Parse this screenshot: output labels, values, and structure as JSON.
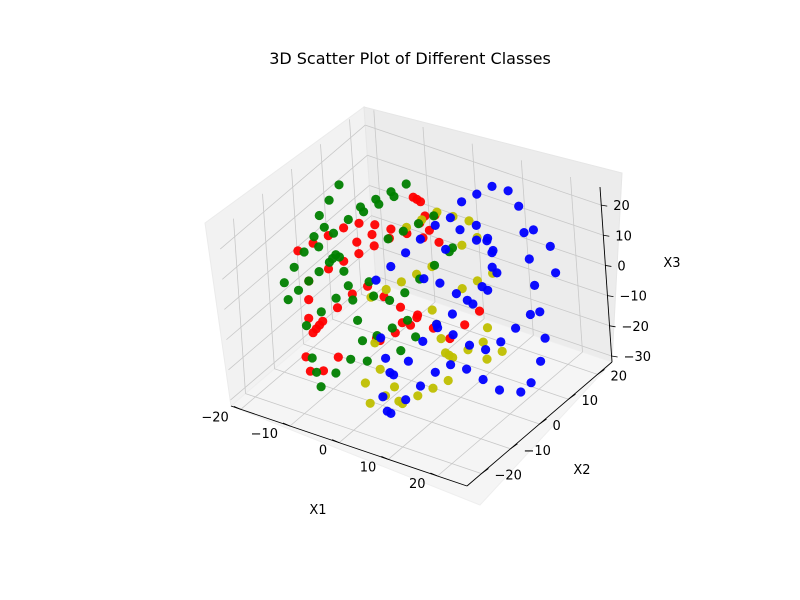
{
  "chart_data": {
    "type": "scatter",
    "projection": "3d",
    "title": "3D Scatter Plot of Different Classes",
    "xlabel": "X1",
    "ylabel": "X2",
    "zlabel": "X3",
    "xlim": [
      -22,
      26
    ],
    "ylim": [
      -25,
      25
    ],
    "zlim": [
      -32,
      26
    ],
    "xticks": [
      -20,
      -10,
      0,
      10,
      20
    ],
    "yticks": [
      -20,
      -10,
      0,
      10,
      20
    ],
    "zticks": [
      -30,
      -20,
      -10,
      0,
      10,
      20
    ],
    "grid": true,
    "legend": "none",
    "series": [
      {
        "color": "#ff0000",
        "points": [
          [
            -18,
            -6,
            6
          ],
          [
            -16,
            -4,
            8
          ],
          [
            -14,
            -2,
            10
          ],
          [
            -12,
            0,
            12
          ],
          [
            -10,
            2,
            13
          ],
          [
            -8,
            4,
            12
          ],
          [
            -6,
            6,
            10
          ],
          [
            -4,
            8,
            8
          ],
          [
            -2,
            10,
            6
          ],
          [
            0,
            12,
            4
          ],
          [
            -17,
            2,
            -6
          ],
          [
            -15,
            4,
            -4
          ],
          [
            -13,
            6,
            -2
          ],
          [
            -11,
            8,
            0
          ],
          [
            -9,
            10,
            2
          ],
          [
            -7,
            12,
            4
          ],
          [
            -5,
            14,
            6
          ],
          [
            -3,
            16,
            8
          ],
          [
            -20,
            0,
            -10
          ],
          [
            -19,
            -2,
            -14
          ],
          [
            -18,
            -4,
            -18
          ],
          [
            -16,
            -6,
            -20
          ],
          [
            -14,
            -8,
            -16
          ],
          [
            -12,
            -10,
            -12
          ],
          [
            -10,
            -12,
            -8
          ],
          [
            -8,
            -10,
            -4
          ],
          [
            -6,
            -8,
            0
          ],
          [
            -4,
            -6,
            2
          ],
          [
            -2,
            -4,
            -2
          ],
          [
            0,
            -2,
            -6
          ],
          [
            2,
            0,
            -10
          ],
          [
            4,
            2,
            -14
          ],
          [
            6,
            4,
            -18
          ],
          [
            8,
            6,
            -14
          ],
          [
            10,
            8,
            -10
          ],
          [
            -6,
            14,
            14
          ],
          [
            -4,
            12,
            16
          ],
          [
            -2,
            10,
            18
          ],
          [
            0,
            8,
            16
          ],
          [
            2,
            6,
            14
          ],
          [
            -14,
            -12,
            -22
          ],
          [
            -12,
            -14,
            -24
          ],
          [
            -8,
            -16,
            -20
          ],
          [
            -6,
            -14,
            -16
          ],
          [
            4,
            -8,
            -4
          ],
          [
            6,
            -6,
            -2
          ],
          [
            -10,
            6,
            6
          ],
          [
            -12,
            4,
            4
          ],
          [
            -8,
            2,
            -24
          ],
          [
            -6,
            0,
            -22
          ],
          [
            -4,
            2,
            -20
          ],
          [
            -2,
            4,
            -18
          ]
        ]
      },
      {
        "color": "#bfbf00",
        "points": [
          [
            -4,
            8,
            10
          ],
          [
            -2,
            10,
            12
          ],
          [
            0,
            12,
            14
          ],
          [
            2,
            14,
            12
          ],
          [
            4,
            16,
            10
          ],
          [
            -6,
            -2,
            -6
          ],
          [
            -4,
            0,
            -4
          ],
          [
            -2,
            2,
            -2
          ],
          [
            0,
            4,
            0
          ],
          [
            2,
            6,
            2
          ],
          [
            4,
            2,
            -8
          ],
          [
            6,
            0,
            -10
          ],
          [
            8,
            -2,
            -12
          ],
          [
            10,
            -4,
            -14
          ],
          [
            12,
            -6,
            -12
          ],
          [
            14,
            -8,
            -10
          ],
          [
            16,
            -6,
            -8
          ],
          [
            18,
            -4,
            -6
          ],
          [
            4,
            -12,
            -22
          ],
          [
            6,
            -14,
            -24
          ],
          [
            8,
            -16,
            -22
          ],
          [
            10,
            -14,
            -20
          ],
          [
            12,
            -12,
            -18
          ],
          [
            14,
            -10,
            -16
          ],
          [
            0,
            -10,
            -20
          ],
          [
            2,
            -12,
            -26
          ],
          [
            -2,
            -8,
            -14
          ],
          [
            8,
            6,
            -2
          ],
          [
            10,
            8,
            0
          ],
          [
            12,
            10,
            2
          ],
          [
            6,
            10,
            8
          ],
          [
            8,
            12,
            10
          ],
          [
            -2,
            -12,
            -24
          ],
          [
            0,
            -14,
            -28
          ],
          [
            16,
            0,
            -16
          ],
          [
            18,
            2,
            -14
          ],
          [
            14,
            4,
            -10
          ]
        ]
      },
      {
        "color": "#008000",
        "points": [
          [
            -20,
            -8,
            -4
          ],
          [
            -19,
            -6,
            0
          ],
          [
            -18,
            -4,
            4
          ],
          [
            -17,
            -2,
            8
          ],
          [
            -16,
            0,
            10
          ],
          [
            -20,
            4,
            -2
          ],
          [
            -18,
            6,
            2
          ],
          [
            -16,
            8,
            6
          ],
          [
            -14,
            10,
            8
          ],
          [
            -12,
            12,
            10
          ],
          [
            -10,
            14,
            12
          ],
          [
            -22,
            -4,
            -14
          ],
          [
            -21,
            -2,
            -12
          ],
          [
            -20,
            0,
            -10
          ],
          [
            -19,
            2,
            -8
          ],
          [
            -18,
            4,
            -6
          ],
          [
            -16,
            2,
            -2
          ],
          [
            -14,
            0,
            2
          ],
          [
            -12,
            -2,
            4
          ],
          [
            -10,
            -4,
            2
          ],
          [
            -8,
            -6,
            0
          ],
          [
            -6,
            -8,
            -2
          ],
          [
            -4,
            -10,
            -6
          ],
          [
            -2,
            -12,
            -10
          ],
          [
            0,
            -14,
            -14
          ],
          [
            -14,
            -10,
            -24
          ],
          [
            -12,
            -12,
            -26
          ],
          [
            -10,
            -14,
            -28
          ],
          [
            -8,
            -12,
            -24
          ],
          [
            -6,
            -10,
            -20
          ],
          [
            -8,
            8,
            4
          ],
          [
            -6,
            10,
            6
          ],
          [
            -4,
            12,
            8
          ],
          [
            -2,
            14,
            10
          ],
          [
            -10,
            4,
            -8
          ],
          [
            -8,
            2,
            -10
          ],
          [
            -6,
            4,
            -12
          ],
          [
            -4,
            6,
            -10
          ],
          [
            -2,
            8,
            -6
          ],
          [
            0,
            10,
            -2
          ],
          [
            2,
            12,
            2
          ],
          [
            4,
            10,
            6
          ],
          [
            -22,
            8,
            4
          ],
          [
            -21,
            10,
            8
          ],
          [
            -20,
            12,
            12
          ],
          [
            -4,
            -4,
            -16
          ],
          [
            -2,
            -2,
            -14
          ],
          [
            0,
            0,
            -12
          ],
          [
            -12,
            6,
            14
          ],
          [
            -10,
            8,
            16
          ],
          [
            -8,
            10,
            18
          ],
          [
            -6,
            12,
            20
          ],
          [
            -16,
            -8,
            -16
          ],
          [
            -14,
            -6,
            -12
          ],
          [
            -12,
            -4,
            -8
          ],
          [
            2,
            -6,
            -16
          ],
          [
            4,
            -4,
            -12
          ]
        ]
      },
      {
        "color": "#0000ff",
        "points": [
          [
            4,
            14,
            18
          ],
          [
            6,
            16,
            20
          ],
          [
            8,
            18,
            22
          ],
          [
            10,
            20,
            20
          ],
          [
            12,
            20,
            16
          ],
          [
            14,
            18,
            10
          ],
          [
            16,
            16,
            4
          ],
          [
            18,
            14,
            -2
          ],
          [
            20,
            12,
            -8
          ],
          [
            22,
            10,
            -14
          ],
          [
            22,
            8,
            -20
          ],
          [
            21,
            6,
            -26
          ],
          [
            20,
            4,
            -28
          ],
          [
            -2,
            4,
            6
          ],
          [
            0,
            6,
            10
          ],
          [
            2,
            8,
            14
          ],
          [
            4,
            10,
            16
          ],
          [
            8,
            12,
            14
          ],
          [
            10,
            12,
            10
          ],
          [
            12,
            10,
            4
          ],
          [
            12,
            8,
            -2
          ],
          [
            10,
            6,
            -6
          ],
          [
            8,
            4,
            -2
          ],
          [
            6,
            2,
            2
          ],
          [
            4,
            0,
            4
          ],
          [
            -2,
            -6,
            -14
          ],
          [
            0,
            -8,
            -18
          ],
          [
            2,
            -10,
            -20
          ],
          [
            4,
            -12,
            -18
          ],
          [
            6,
            -10,
            -14
          ],
          [
            8,
            -8,
            -8
          ],
          [
            10,
            -6,
            -4
          ],
          [
            12,
            -4,
            0
          ],
          [
            14,
            -2,
            4
          ],
          [
            16,
            0,
            8
          ],
          [
            18,
            2,
            12
          ],
          [
            16,
            4,
            16
          ],
          [
            14,
            6,
            18
          ],
          [
            4,
            -16,
            -22
          ],
          [
            6,
            -18,
            -24
          ],
          [
            8,
            -20,
            -22
          ],
          [
            10,
            -18,
            -18
          ],
          [
            12,
            -16,
            -14
          ],
          [
            14,
            -14,
            -10
          ],
          [
            16,
            -12,
            -8
          ],
          [
            18,
            -10,
            -10
          ],
          [
            20,
            -8,
            -14
          ],
          [
            22,
            -6,
            -18
          ],
          [
            6,
            0,
            -10
          ],
          [
            8,
            2,
            -14
          ],
          [
            10,
            4,
            -18
          ],
          [
            12,
            6,
            -20
          ],
          [
            14,
            8,
            -18
          ],
          [
            16,
            10,
            -14
          ],
          [
            18,
            12,
            -10
          ],
          [
            -4,
            2,
            2
          ],
          [
            -6,
            0,
            -2
          ],
          [
            2,
            16,
            6
          ],
          [
            4,
            18,
            2
          ],
          [
            6,
            20,
            -2
          ],
          [
            0,
            14,
            0
          ],
          [
            16,
            18,
            12
          ],
          [
            18,
            20,
            6
          ],
          [
            20,
            18,
            0
          ]
        ]
      }
    ]
  }
}
